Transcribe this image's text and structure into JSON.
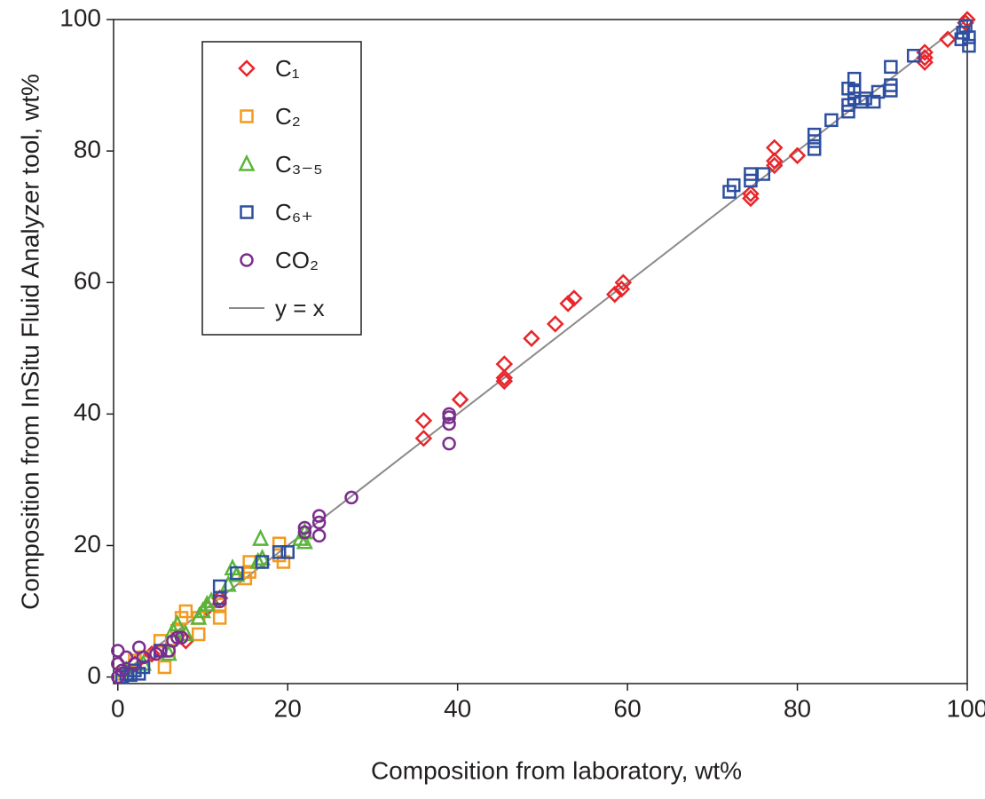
{
  "chart_data": {
    "type": "scatter",
    "xlabel": "Composition from laboratory, wt%",
    "ylabel": "Composition from InSitu Fluid Analyzer tool, wt%",
    "xlim": [
      -0.5,
      100
    ],
    "ylim": [
      -1,
      100
    ],
    "xticks": [
      0,
      20,
      40,
      60,
      80,
      100
    ],
    "yticks": [
      0,
      20,
      40,
      60,
      80,
      100
    ],
    "legend": "upper left",
    "series": [
      {
        "name": "C₁",
        "color": "#e8262b",
        "marker": "diamond",
        "x": [
          36,
          36,
          40.3,
          45.5,
          45.5,
          45.5,
          48.7,
          51.5,
          53,
          53.7,
          58.5,
          59.3,
          59.5,
          74.5,
          74.5,
          77.3,
          77.3,
          77.3,
          80,
          95,
          95,
          95,
          97.7,
          99.8,
          100,
          8,
          10.5,
          12,
          4,
          2
        ],
        "y": [
          36.3,
          39,
          42.2,
          45,
          45.5,
          47.6,
          51.5,
          53.7,
          56.8,
          57.6,
          58.2,
          59,
          60,
          72.8,
          73.5,
          77.8,
          78.5,
          80.5,
          79.3,
          93.5,
          94.2,
          95,
          97,
          99.5,
          100,
          5.5,
          10.5,
          12,
          3.5,
          2
        ]
      },
      {
        "name": "C₂",
        "color": "#f39a1e",
        "marker": "square",
        "x": [
          0.5,
          2,
          3,
          5,
          5.5,
          6,
          7,
          7.5,
          8,
          9.5,
          9.5,
          12,
          12,
          15,
          15.5,
          15.5,
          19,
          19,
          19.5,
          20
        ],
        "y": [
          0.5,
          2.5,
          3,
          5.5,
          1.5,
          4,
          7,
          9,
          10,
          6.5,
          9,
          9,
          11,
          15,
          16,
          17.5,
          20.3,
          18.5,
          17.5,
          19
        ]
      },
      {
        "name": "C₃₋₅",
        "color": "#5ab538",
        "marker": "triangle",
        "x": [
          1,
          3,
          6,
          6.5,
          7,
          8,
          9.5,
          10,
          10.5,
          11,
          13,
          13.5,
          14,
          16.5,
          16.8,
          17,
          21.5,
          22,
          22
        ],
        "y": [
          1,
          2,
          3.5,
          7,
          8,
          6.5,
          9,
          10,
          11,
          11.5,
          14,
          16.5,
          15.5,
          17.5,
          21,
          18,
          21,
          20.5,
          22
        ]
      },
      {
        "name": "C₆₊",
        "color": "#2e4fa0",
        "marker": "square",
        "x": [
          0.5,
          1,
          1.5,
          2,
          2.5,
          3,
          5,
          12,
          12,
          14,
          17,
          19,
          20,
          72,
          72.5,
          74.5,
          74.5,
          76,
          82,
          82,
          82,
          84,
          86,
          86,
          86,
          86.7,
          86.7,
          86.7,
          87.5,
          88,
          89,
          89.5,
          91,
          91,
          91,
          93.7,
          99.3,
          99.5,
          99.8,
          100.2,
          100.2
        ],
        "y": [
          0,
          0.5,
          0.3,
          1,
          0.5,
          1.5,
          4,
          12,
          13.8,
          15.8,
          17.5,
          19,
          19,
          73.8,
          74.8,
          75.5,
          76.5,
          76.5,
          80.3,
          81.5,
          82.5,
          84.7,
          86,
          87,
          89.5,
          88,
          89,
          91,
          87.5,
          88,
          87.5,
          89,
          89.2,
          90,
          92.8,
          94.5,
          97,
          98,
          99,
          96,
          97.3
        ]
      },
      {
        "name": "CO₂",
        "color": "#7b2d8e",
        "marker": "circle",
        "x": [
          0,
          0,
          0,
          0.5,
          1,
          2,
          2.5,
          3,
          4.5,
          5,
          6,
          6.5,
          7,
          7.5,
          12,
          22,
          22,
          23.7,
          23.7,
          23.7,
          27.5,
          39,
          39,
          39,
          39
        ],
        "y": [
          0,
          2,
          4,
          1,
          3,
          2,
          4.5,
          3,
          3.5,
          4,
          4,
          5.5,
          6,
          6,
          11.5,
          22,
          22.7,
          21.5,
          23.5,
          24.5,
          27.3,
          35.5,
          38.5,
          39.5,
          40
        ]
      }
    ],
    "line": {
      "name": "y = x",
      "color": "#8a8a8a",
      "x": [
        0,
        100
      ],
      "y": [
        0,
        100
      ]
    }
  }
}
